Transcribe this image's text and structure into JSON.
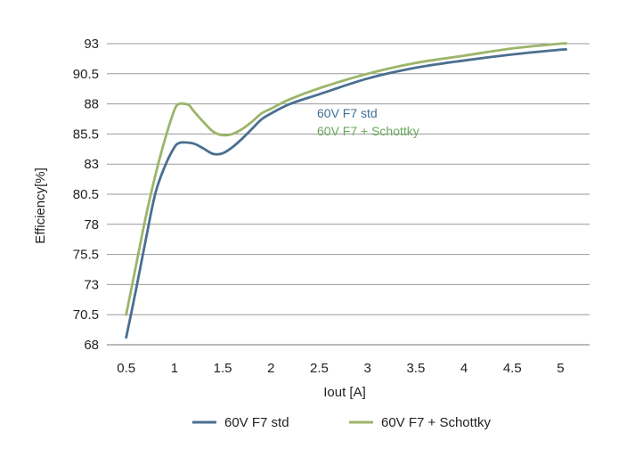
{
  "chart_data": {
    "type": "line",
    "title": "",
    "xlabel": "Iout [A]",
    "ylabel": "Efficiency[%]",
    "xlim": [
      0.3,
      5.3
    ],
    "ylim": [
      68,
      93
    ],
    "x_ticks": [
      0.5,
      1,
      1.5,
      2,
      2.5,
      3,
      3.5,
      4,
      4.5,
      5
    ],
    "x_tick_labels": [
      "0.5",
      "1",
      "1.5",
      "2",
      "2.5",
      "3",
      "3.5",
      "4",
      "4.5",
      "5"
    ],
    "y_ticks": [
      68,
      70.5,
      73,
      75.5,
      78,
      80.5,
      83,
      85.5,
      88,
      90.5,
      93
    ],
    "y_tick_labels": [
      "68",
      "70.5",
      "73",
      "75.5",
      "78",
      "80.5",
      "83",
      "85.5",
      "88",
      "90.5",
      "93"
    ],
    "grid": "horizontal",
    "legend_position": "bottom",
    "series": [
      {
        "name": "60V F7 std",
        "color": "#4a6f91",
        "x": [
          0.5,
          0.6,
          0.7,
          0.8,
          0.9,
          1.0,
          1.05,
          1.1,
          1.2,
          1.3,
          1.4,
          1.5,
          1.6,
          1.7,
          1.8,
          1.9,
          2.0,
          2.2,
          2.5,
          3.0,
          3.5,
          4.0,
          4.5,
          5.0,
          5.05
        ],
        "y": [
          68.6,
          72.5,
          76.6,
          80.5,
          82.8,
          84.4,
          84.75,
          84.8,
          84.7,
          84.3,
          83.85,
          83.9,
          84.4,
          85.1,
          85.9,
          86.7,
          87.2,
          88.0,
          88.8,
          90.1,
          91.0,
          91.6,
          92.1,
          92.5,
          92.5
        ]
      },
      {
        "name": "60V F7 + Schottky",
        "color": "#9bb56a",
        "x": [
          0.5,
          0.6,
          0.7,
          0.8,
          0.9,
          1.0,
          1.05,
          1.1,
          1.15,
          1.2,
          1.3,
          1.4,
          1.5,
          1.6,
          1.7,
          1.8,
          1.9,
          2.0,
          2.2,
          2.5,
          3.0,
          3.5,
          4.0,
          4.5,
          5.0,
          5.05
        ],
        "y": [
          70.5,
          74.5,
          78.5,
          82.0,
          85.0,
          87.5,
          88.0,
          88.0,
          87.9,
          87.4,
          86.5,
          85.7,
          85.4,
          85.5,
          85.9,
          86.5,
          87.2,
          87.6,
          88.4,
          89.3,
          90.5,
          91.4,
          92.0,
          92.6,
          93.0,
          93.0
        ]
      }
    ],
    "annotations": [
      {
        "text": "60V F7 std",
        "color": "#3e6e94"
      },
      {
        "text": "60V F7 + Schottky",
        "color": "#6aa85a"
      }
    ]
  }
}
